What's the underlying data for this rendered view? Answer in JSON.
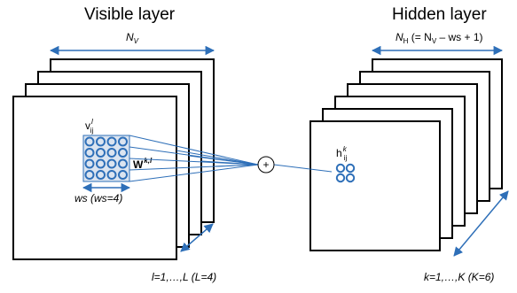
{
  "visible": {
    "title": "Visible layer",
    "width_var": "N",
    "width_sub": "V",
    "unit_var": "v",
    "unit_sup": "l",
    "unit_sub": "ij",
    "weight_var": "W",
    "weight_sup": "k,l",
    "ws_label": "ws (ws=4)",
    "count_label": "l=1,…,L (L=4)",
    "patch_grid": {
      "rows": 4,
      "cols": 4
    }
  },
  "hidden": {
    "title": "Hidden layer",
    "width_var": "N",
    "width_sub": "H",
    "width_formula": "(= N",
    "width_formula_sub": "V",
    "width_formula_rest": " – ws + 1)",
    "unit_var": "h",
    "unit_sup": "k",
    "unit_sub": "ij",
    "count_label": "k=1,…,K (K=6)"
  },
  "sum_symbol": "+",
  "colors": {
    "accent": "#2e6fb8",
    "patch_fill": "#dbe4f0",
    "stroke": "#000000"
  },
  "icons": {
    "sum_node": "plus-circle-icon",
    "unit": "ring-unit-icon"
  }
}
